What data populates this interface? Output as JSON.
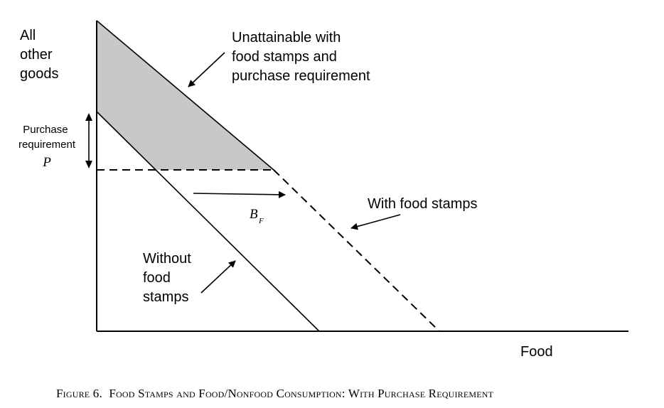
{
  "axes": {
    "y_label_lines": [
      "All",
      "other",
      "goods"
    ],
    "x_label": "Food"
  },
  "annotations": {
    "unattainable_lines": [
      "Unattainable with",
      "food stamps and",
      "purchase requirement"
    ],
    "purchase_lines": [
      "Purchase",
      "requirement"
    ],
    "purchase_symbol": "P",
    "benefit_symbol": "B",
    "benefit_subscript": "F",
    "with_food_stamps": "With food stamps",
    "without_lines": [
      "Without",
      "food",
      "stamps"
    ]
  },
  "caption": {
    "figure_number": "Figure 6.",
    "title": "Food Stamps and Food/Nonfood Consumption: With Purchase Requirement"
  },
  "colors": {
    "shade": "#c8c8c8",
    "ink": "#000000"
  }
}
